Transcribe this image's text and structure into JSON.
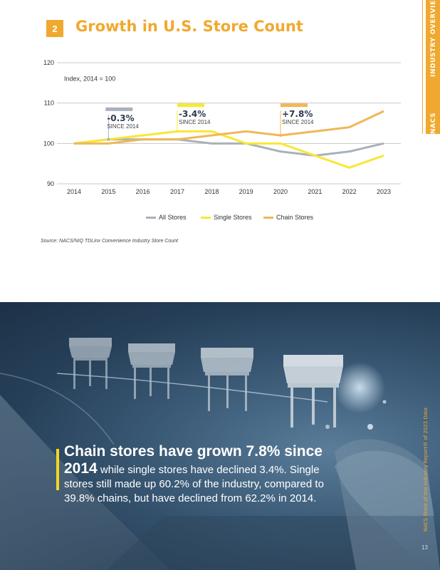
{
  "header": {
    "section_number": "2",
    "title": "Growth in U.S. Store Count",
    "side_label_brand": "NACS",
    "side_label_section": "INDUSTRY OVERVIEW"
  },
  "colors": {
    "accent_orange": "#f0a92e",
    "highlight_yellow": "#f5d623",
    "navy": "#2b3a4f",
    "all_stores": "#a9b1bb",
    "single_stores": "#f7e835",
    "chain_stores": "#f0b757"
  },
  "chart_data": {
    "type": "line",
    "title": "Growth in U.S. Store Count",
    "index_note": "Index, 2014 = 100",
    "x": [
      "2014",
      "2015",
      "2016",
      "2017",
      "2018",
      "2019",
      "2020",
      "2021",
      "2022",
      "2023"
    ],
    "ylim": [
      90,
      120
    ],
    "yticks": [
      90,
      100,
      110,
      120
    ],
    "grid": true,
    "legend_position": "bottom",
    "series": [
      {
        "name": "All Stores",
        "values": [
          100,
          101,
          101,
          101,
          100,
          100,
          98,
          97,
          98,
          100
        ]
      },
      {
        "name": "Single Stores",
        "values": [
          100,
          101,
          102,
          103,
          103,
          100,
          100,
          97,
          94,
          97
        ]
      },
      {
        "name": "Chain Stores",
        "values": [
          100,
          100,
          101,
          101,
          102,
          103,
          102,
          103,
          104,
          108
        ]
      }
    ],
    "annotations": [
      {
        "value": "-0.3%",
        "label": "SINCE 2014",
        "series": "All Stores",
        "anchor_year": "2015",
        "anchor_value": 101,
        "label_value": 107.5
      },
      {
        "value": "-3.4%",
        "label": "SINCE 2014",
        "series": "Single Stores",
        "anchor_year": "2017",
        "anchor_value": 103,
        "label_value": 108.5
      },
      {
        "value": "+7.8%",
        "label": "SINCE 2014",
        "series": "Chain Stores",
        "anchor_year": "2020",
        "anchor_value": 102,
        "label_value": 108.5
      }
    ]
  },
  "source": "Source: NACS/NIQ TDLinx Convenience Industry Store Count",
  "quote": {
    "lead": "Chain stores have grown 7.8% since 2014",
    "body": " while single stores have declined 3.4%. Single stores still made up 60.2% of the industry, compared to 39.8% chains, but have declined from 62.2% in 2014."
  },
  "footer": {
    "report_label": "NACS State of the Industry Report® of 2023 Data",
    "page_number": "13"
  }
}
